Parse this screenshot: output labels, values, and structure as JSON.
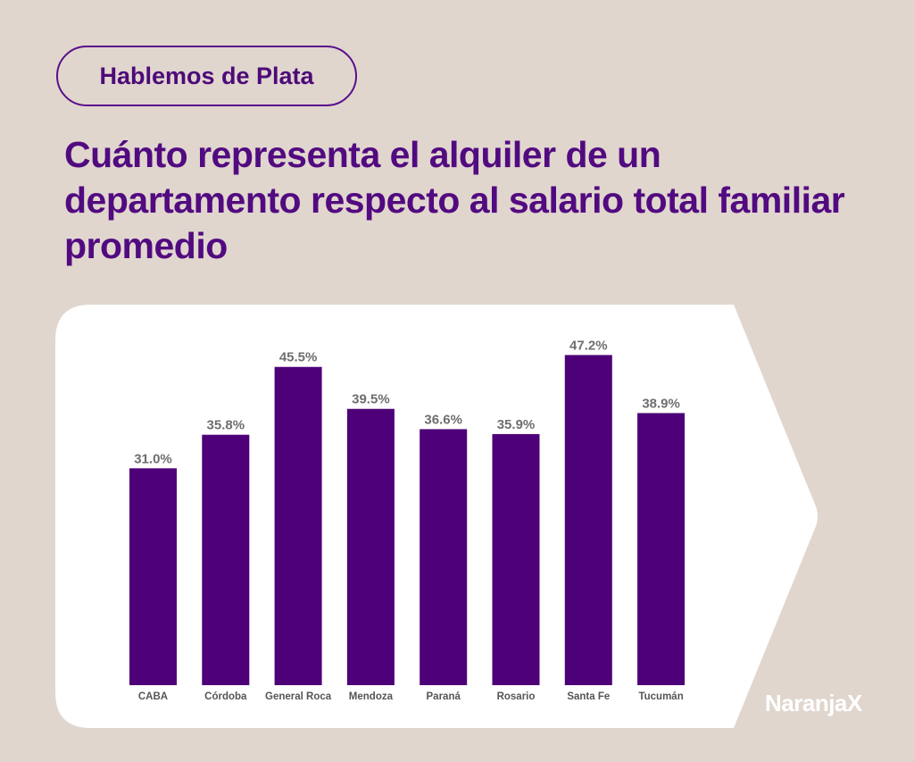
{
  "header": {
    "pill_label": "Hablemos de Plata",
    "title": "Cuánto representa el alquiler de un departamento respecto al salario total familiar promedio"
  },
  "brand": {
    "logo_text": "NaranjaX"
  },
  "colors": {
    "background": "#e0d6ce",
    "card": "#ffffff",
    "bar": "#4d0077",
    "accent": "#520a80"
  },
  "chart_data": {
    "type": "bar",
    "title": "Cuánto representa el alquiler de un departamento respecto al salario total familiar promedio",
    "categories": [
      "CABA",
      "Córdoba",
      "General Roca",
      "Mendoza",
      "Paraná",
      "Rosario",
      "Santa Fe",
      "Tucumán"
    ],
    "values": [
      31.0,
      35.8,
      45.5,
      39.5,
      36.6,
      35.9,
      47.2,
      38.9
    ],
    "data_labels": [
      "31.0%",
      "35.8%",
      "45.5%",
      "39.5%",
      "36.6%",
      "35.9%",
      "47.2%",
      "38.9%"
    ],
    "xlabel": "",
    "ylabel": "",
    "ylim": [
      0,
      50
    ],
    "grid": false,
    "legend": "none"
  }
}
